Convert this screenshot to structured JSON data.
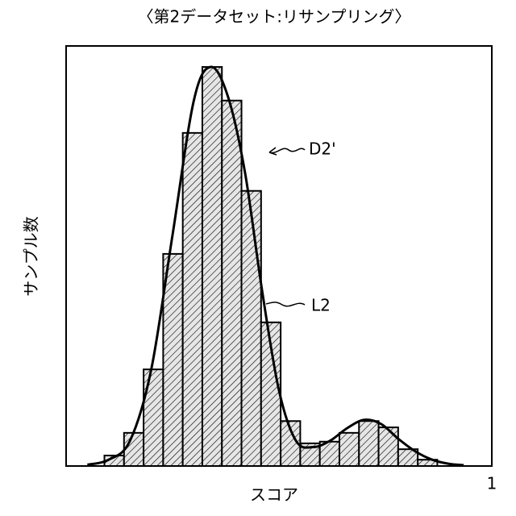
{
  "chart_data": {
    "type": "histogram",
    "title": "〈第2データセット:リサンプリング〉",
    "xlabel": "スコア",
    "ylabel": "サンプル数",
    "xlim": [
      0,
      1
    ],
    "xticks": [
      1
    ],
    "ylim": [
      0,
      100
    ],
    "histogram_label": "D2'",
    "bins": [
      0.09,
      0.136,
      0.182,
      0.228,
      0.274,
      0.32,
      0.366,
      0.412,
      0.458,
      0.504,
      0.55,
      0.596,
      0.642,
      0.688,
      0.734,
      0.78,
      0.826,
      0.872
    ],
    "values": [
      2.5,
      7.9,
      23,
      50.5,
      79.3,
      95,
      87,
      65.5,
      34.2,
      10.7,
      5.4,
      5.8,
      7.9,
      10.7,
      9.2,
      4,
      1.5
    ],
    "curve": {
      "name": "L2",
      "x": [
        0.05,
        0.1,
        0.15,
        0.2,
        0.25,
        0.3,
        0.34,
        0.38,
        0.42,
        0.46,
        0.5,
        0.54,
        0.58,
        0.62,
        0.66,
        0.7,
        0.74,
        0.78,
        0.82,
        0.86,
        0.9,
        0.934
      ],
      "values": [
        0.3,
        1.5,
        6,
        23,
        55,
        87,
        95,
        88,
        70,
        42,
        18,
        6,
        4.5,
        6,
        9,
        11,
        10,
        6.5,
        3.5,
        1.5,
        0.5,
        0.2
      ]
    }
  }
}
